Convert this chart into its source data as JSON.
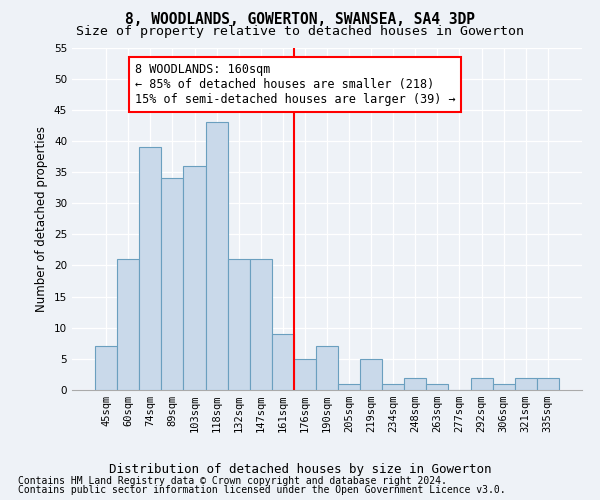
{
  "title1": "8, WOODLANDS, GOWERTON, SWANSEA, SA4 3DP",
  "title2": "Size of property relative to detached houses in Gowerton",
  "xlabel": "Distribution of detached houses by size in Gowerton",
  "ylabel": "Number of detached properties",
  "categories": [
    "45sqm",
    "60sqm",
    "74sqm",
    "89sqm",
    "103sqm",
    "118sqm",
    "132sqm",
    "147sqm",
    "161sqm",
    "176sqm",
    "190sqm",
    "205sqm",
    "219sqm",
    "234sqm",
    "248sqm",
    "263sqm",
    "277sqm",
    "292sqm",
    "306sqm",
    "321sqm",
    "335sqm"
  ],
  "values": [
    7,
    21,
    39,
    34,
    36,
    43,
    21,
    21,
    9,
    5,
    7,
    1,
    5,
    1,
    2,
    1,
    0,
    2,
    1,
    2,
    2
  ],
  "bar_color": "#c9d9ea",
  "bar_edge_color": "#6a9fbf",
  "highlight_bin_index": 8,
  "annotation_line1": "8 WOODLANDS: 160sqm",
  "annotation_line2": "← 85% of detached houses are smaller (218)",
  "annotation_line3": "15% of semi-detached houses are larger (39) →",
  "ylim": [
    0,
    55
  ],
  "yticks": [
    0,
    5,
    10,
    15,
    20,
    25,
    30,
    35,
    40,
    45,
    50,
    55
  ],
  "footnote1": "Contains HM Land Registry data © Crown copyright and database right 2024.",
  "footnote2": "Contains public sector information licensed under the Open Government Licence v3.0.",
  "bg_color": "#eef2f7",
  "grid_color": "#ffffff",
  "title_fontsize": 10.5,
  "subtitle_fontsize": 9.5,
  "axis_label_fontsize": 9,
  "tick_fontsize": 7.5,
  "annotation_fontsize": 8.5,
  "footnote_fontsize": 7,
  "ylabel_fontsize": 8.5
}
